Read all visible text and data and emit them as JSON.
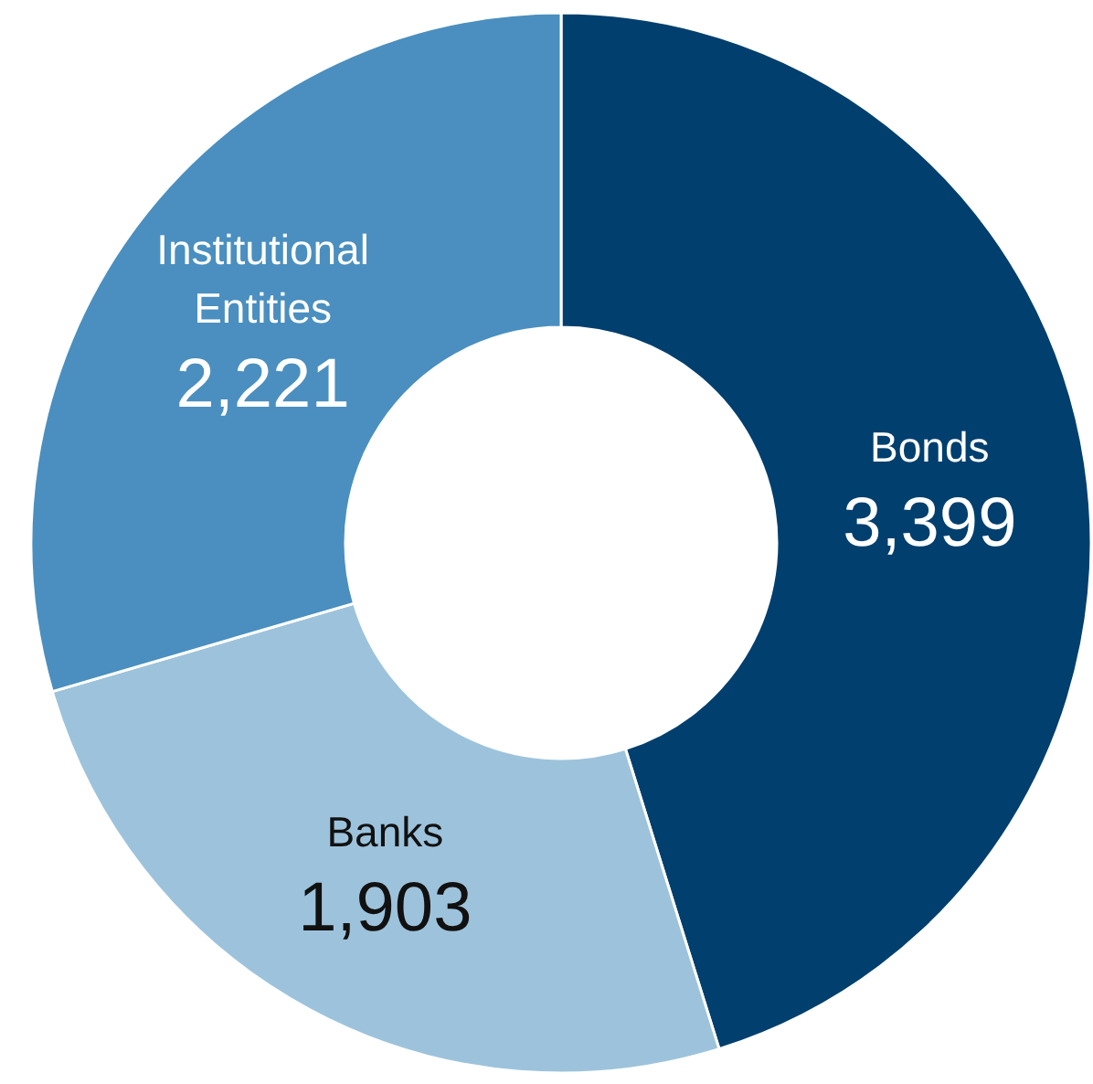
{
  "chart_data": {
    "type": "donut",
    "categories": [
      "Bonds",
      "Banks",
      "Institutional Entities"
    ],
    "values": [
      3399,
      1903,
      2221
    ],
    "colors": [
      "#003f6e",
      "#9dc3dc",
      "#4a8fbf"
    ],
    "value_labels": [
      "3,399",
      "1,903",
      "2,221"
    ]
  }
}
